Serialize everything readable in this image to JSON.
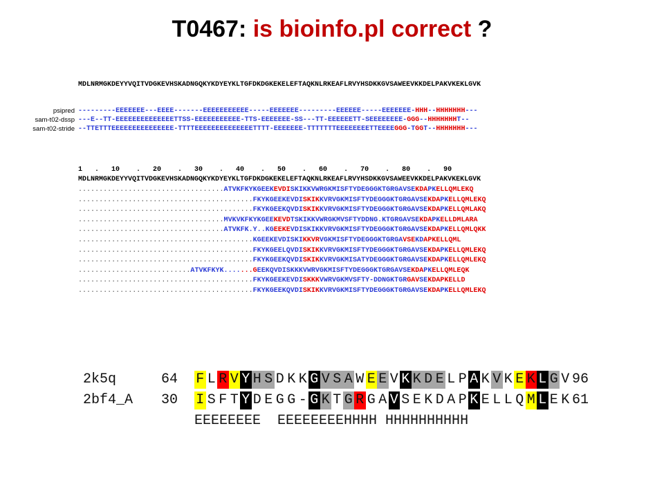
{
  "title": {
    "prefix": "T0467: ",
    "highlight": "is bioinfo.pl correct",
    "suffix": " ?"
  },
  "colors": {
    "blue": "#2b3bd6",
    "red": "#e00000",
    "black": "#000000",
    "yellow": "#ffff00",
    "redbox": "#ff0000",
    "gray": "#a6a6a6",
    "darkgray": "#7a7a7a"
  },
  "upper": {
    "query": "MDLNRMGKDEYYVQITVDGKEVHSKADNGQKYKDYEYKLTGFDKDGKEKELEFTAQKNLRKEAFLRVYHSDKKGVSAWEEVKKDELPAKVKEKLGVK",
    "ss_rows": [
      {
        "label": "psipred",
        "text": "---------EEEEEEE---EEEE-------EEEEEEEEEEE-----EEEEEEE---------EEEEEE-----EEEEEEE-HHH--HHHHHHH---"
      },
      {
        "label": "sam-t02-dssp",
        "text": "---E--TT-EEEEEEEEEEEEEETTSS-EEEEEEEEEEE-TTS-EEEEEEE-SS---TT-EEEEEETT-SEEEEEEEE-GGG--HHHHHHHT--"
      },
      {
        "label": "sam-t02-stride",
        "text": "--TTETTTEEEEEEEEEEEEEEE-TTTTEEEEEEEEEEEEEETTTT-EEEEEEE-TTTTTTTEEEEEEEETTEEEEGGG-TGGT--HHHHHHH---"
      }
    ],
    "ruler": "1   .   10    .   20    .   30    .   40    .   50    .   60    .   70    .   80    .   90",
    "query2": "MDLNRMGKDEYYVQITVDGKEVHSKADNGQKYKDYEYKLTGFDKDGKEKELEFTAQKNLRKEAFLRVYHSDKKGVSAWEEVKKDELPAKVKEKLGVK",
    "hits": [
      "...................................ATVKFKYKGEEKEVDISKIKKVWRGKMISFTYDEGGGKTGRGAVSEKDAPKELLQMLEKQ",
      "..........................................FKYKGEEKEVDISKIKKVRVGKMISFTYDEGGGKTGRGAVSEKDAPKELLQMLEKQ",
      "..........................................FKYKGEEKQVDISKIKKVRVGKMISFTYDEGGGKTGRGAVSEKDAPKELLQMLAKQ",
      "...................................MVKVKFKYKGEEKEVDTSKIKKVWRGKMVSFTYDDNG.KTGRGAVSEKDAPKELLDMLARA",
      "...................................ATVKFK.Y..KGEEKEVDISKIKKVRVGKMISFTYDEGGGKTGRGAVSEKDAPKELLQMLQKK",
      "..........................................KGEEKEVDISKIKKVRVGKMISFTYDEGGGKTGRGAVSEKDAPKELLQML",
      "..........................................FKYKGEELQVDISKIKKVRVGKMISFTYDEGGGKTGRGAVSEKDAPKELLQMLEKQ",
      "..........................................FKYKGEEKQVDISKIKKVRVGKMISATYDEGGGKTGRGAVSEKDAPKELLQMLEKQ",
      "...........................ATVKFKYK.......GEEKQVDISKKKVWRVGKMISFTYDEGGGKTGRGAVSEKDAPKELLQMLEQK",
      "..........................................FKYKGEEKEVDISKKKVWRVGKMVSFTY-DDNGKTGRGAVSEKDAPKELLD",
      "..........................................FKYKGEEKQVDISKIKKVRVGKMISFTYDEGGGKTGRGAVSEKDAPKELLQMLEKQ"
    ]
  },
  "lower": {
    "rows": [
      {
        "name": "2k5q",
        "start": "64",
        "seq": "FLRVYHSDKKGVSAWEEVKKDELPAKVKEKLGV",
        "end": "96"
      },
      {
        "name": "2bf4_A",
        "start": "30",
        "seq": "ISFTYDEGG-GKTGRGAVSEKDAPKELLQMLEK",
        "end": "61"
      }
    ],
    "ss": "EEEEEEEE  EEEEEEEEHHHH HHHHHHHHHH"
  }
}
